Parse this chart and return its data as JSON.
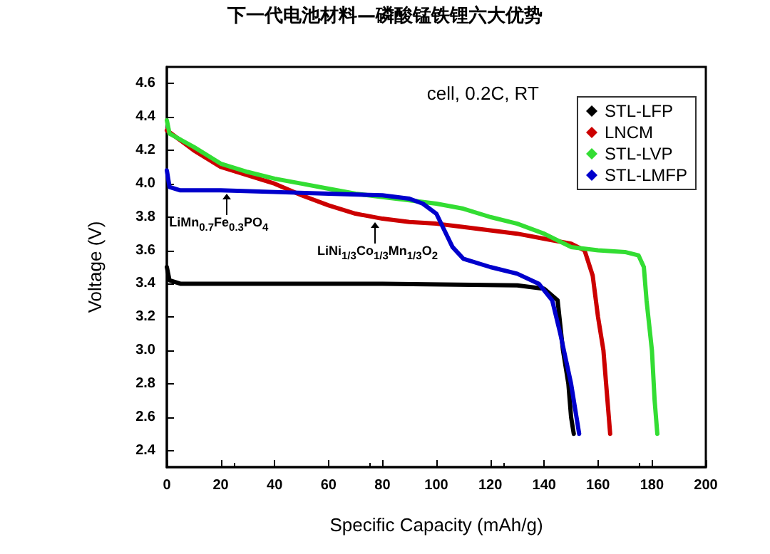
{
  "chart_data": {
    "type": "line",
    "title": "下一代电池材料—磷酸锰铁锂六大优势",
    "xlabel": "Specific Capacity (mAh/g)",
    "ylabel": "Voltage (V)",
    "annotations": [
      "cell, 0.2C, RT",
      {
        "text": "LiMn$_{0.7}$Fe$_{0.3}$PO$_{4}$",
        "x": 22,
        "y": 3.96
      },
      {
        "text": "LiNi$_{1/3}$Co$_{1/3}$Mn$_{1/3}$O$_{2}$",
        "x": 77,
        "y": 3.79
      }
    ],
    "xlim": [
      0,
      200
    ],
    "xticks": [
      0,
      20,
      40,
      60,
      80,
      100,
      120,
      140,
      160,
      180,
      200
    ],
    "ylim": [
      2.3,
      4.7
    ],
    "yticks": [
      {
        "value": 2.4,
        "label": "2.4"
      },
      {
        "value": 2.6,
        "label": "2.6"
      },
      {
        "value": 2.8,
        "label": "2.8"
      },
      {
        "value": 3.0,
        "label": "3.0"
      },
      {
        "value": 3.2,
        "label": "3.2"
      },
      {
        "value": 3.4,
        "label": "3.4"
      },
      {
        "value": 3.6,
        "label": "3.6"
      },
      {
        "value": 3.8,
        "label": "3.8"
      },
      {
        "value": 4.0,
        "label": "4.0"
      },
      {
        "value": 4.2,
        "label": "4.2"
      },
      {
        "value": 4.4,
        "label": "4.4"
      },
      {
        "value": 4.6,
        "label": "4.6"
      }
    ],
    "grid": false,
    "legend": "top right",
    "marker": "none",
    "line_style": "solid",
    "series": [
      {
        "name": "STL-LFP",
        "color": "#000000",
        "x": [
          0,
          1,
          5,
          40,
          80,
          130,
          140,
          145,
          147,
          149,
          150,
          151
        ],
        "values": [
          3.5,
          3.42,
          3.4,
          3.4,
          3.4,
          3.39,
          3.37,
          3.3,
          3.0,
          2.8,
          2.6,
          2.5
        ]
      },
      {
        "name": "LNCM",
        "color": "#cc0000",
        "x": [
          0,
          10,
          20,
          30,
          40,
          50,
          60,
          70,
          80,
          90,
          100,
          110,
          120,
          130,
          140,
          150,
          155,
          158,
          160,
          162,
          163,
          164,
          164.5
        ],
        "values": [
          4.32,
          4.2,
          4.1,
          4.05,
          4.0,
          3.93,
          3.87,
          3.82,
          3.79,
          3.77,
          3.76,
          3.74,
          3.72,
          3.7,
          3.67,
          3.64,
          3.6,
          3.45,
          3.2,
          3.0,
          2.8,
          2.6,
          2.5
        ]
      },
      {
        "name": "STL-LVP",
        "color": "#33dd33",
        "x": [
          0,
          1,
          10,
          20,
          30,
          40,
          50,
          60,
          70,
          80,
          90,
          100,
          110,
          120,
          130,
          140,
          150,
          160,
          170,
          175,
          177,
          178,
          180,
          181,
          182
        ],
        "values": [
          4.38,
          4.3,
          4.22,
          4.12,
          4.07,
          4.03,
          4.0,
          3.97,
          3.94,
          3.92,
          3.9,
          3.88,
          3.85,
          3.8,
          3.76,
          3.7,
          3.62,
          3.6,
          3.59,
          3.57,
          3.5,
          3.3,
          3.0,
          2.7,
          2.5
        ]
      },
      {
        "name": "STL-LMFP",
        "color": "#0000cc",
        "x": [
          0,
          1,
          5,
          20,
          40,
          60,
          80,
          90,
          95,
          100,
          103,
          106,
          110,
          120,
          130,
          138,
          143,
          146,
          148,
          150,
          152,
          153
        ],
        "values": [
          4.08,
          3.98,
          3.96,
          3.96,
          3.95,
          3.94,
          3.93,
          3.91,
          3.88,
          3.82,
          3.72,
          3.62,
          3.55,
          3.5,
          3.46,
          3.4,
          3.3,
          3.1,
          2.95,
          2.8,
          2.6,
          2.5
        ]
      }
    ]
  }
}
